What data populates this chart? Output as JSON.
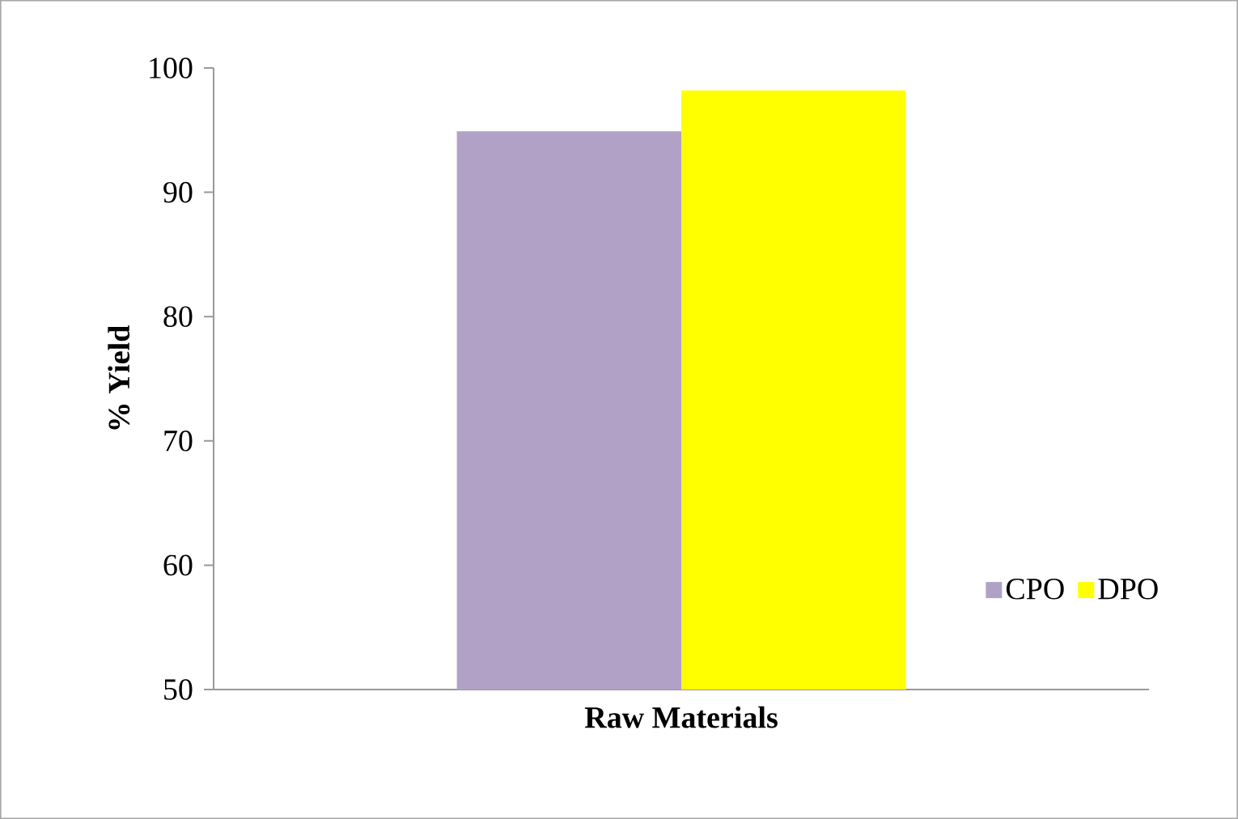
{
  "chart_data": {
    "type": "bar",
    "xlabel": "Raw Materials",
    "ylabel": "% Yield",
    "categories": [
      null
    ],
    "series": [
      {
        "name": "CPO",
        "color": "#b2a1c7",
        "values": [
          94.9
        ]
      },
      {
        "name": "DPO",
        "color": "#ffff00",
        "values": [
          98.2
        ]
      }
    ],
    "ylim": [
      50,
      100
    ],
    "yticks": [
      50,
      60,
      70,
      80,
      90,
      100
    ],
    "legend": "right"
  }
}
